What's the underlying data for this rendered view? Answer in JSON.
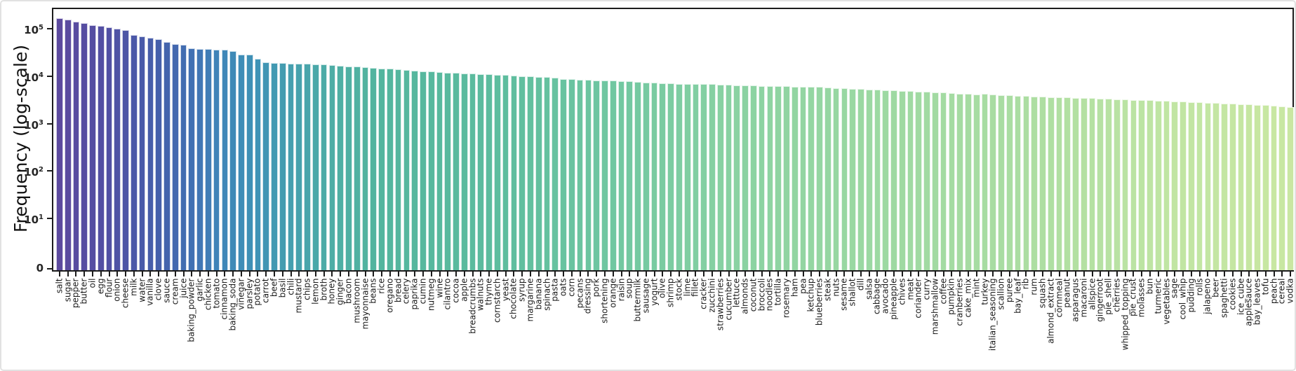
{
  "figure": {
    "background": "#ffffff",
    "border_color": "#e2e2e2",
    "axis_color": "#1c1c1c",
    "tick_label_color": "#262626",
    "bar_edge_color": "rgba(255,255,255,0.75)"
  },
  "chart_data": {
    "type": "bar",
    "title": "",
    "xlabel": "",
    "ylabel": "Frequency (log-scale)",
    "yscale": "symlog",
    "ylim": [
      0,
      277000
    ],
    "grid": false,
    "legend_position": "none",
    "yticks": [
      {
        "label": "0",
        "value": 0
      },
      {
        "base": "10",
        "exp": "1",
        "value": 10
      },
      {
        "base": "10",
        "exp": "2",
        "value": 100
      },
      {
        "base": "10",
        "exp": "3",
        "value": 1000
      },
      {
        "base": "10",
        "exp": "4",
        "value": 10000
      },
      {
        "base": "10",
        "exp": "5",
        "value": 100000
      }
    ],
    "categories": [
      "salt",
      "sugar",
      "pepper",
      "butter",
      "oil",
      "egg",
      "flour",
      "onion",
      "cheese",
      "milk",
      "water",
      "vanilla",
      "clove",
      "sauce",
      "cream",
      "juice",
      "baking_powder",
      "garlic",
      "chicken",
      "tomato",
      "cinnamon",
      "baking_soda",
      "vinegar",
      "parsley",
      "potato",
      "carrot",
      "beef",
      "basil",
      "chili",
      "mustard",
      "chips",
      "lemon",
      "broth",
      "honey",
      "ginger",
      "bacon",
      "mushroom",
      "mayonnaise",
      "beans",
      "rice",
      "oregano",
      "bread",
      "celery",
      "paprika",
      "cumin",
      "nutmeg",
      "wine",
      "cilantro",
      "cocoa",
      "apple",
      "breadcrumbs",
      "walnuts",
      "thyme",
      "cornstarch",
      "yeast",
      "chocolate",
      "syrup",
      "margarine",
      "banana",
      "spinach",
      "pasta",
      "oats",
      "corn",
      "pecans",
      "dressing",
      "pork",
      "shortening",
      "orange",
      "raisin",
      "soup",
      "buttermilk",
      "sausage",
      "yogurt",
      "olive",
      "shrimp",
      "stock",
      "lime",
      "fillet",
      "cracker",
      "zucchini",
      "strawberries",
      "cucumber",
      "lettuce",
      "almonds",
      "coconut",
      "broccoli",
      "noodles",
      "tortilla",
      "rosemary",
      "ham",
      "pea",
      "ketchup",
      "blueberries",
      "steak",
      "nuts",
      "sesame",
      "shallot",
      "dill",
      "salsa",
      "cabbage",
      "avocado",
      "pineapple",
      "chives",
      "meat",
      "coriander",
      "curry",
      "marshmallow",
      "coffee",
      "pumpkin",
      "cranberries",
      "cake_mix",
      "mint",
      "turkey",
      "italian_seasoning",
      "scallion",
      "puree",
      "bay_leaf",
      "rib",
      "rum",
      "squash",
      "almond_extract",
      "cornmeal",
      "peanut",
      "asparagus",
      "macaroni",
      "allspice",
      "gingerroot",
      "pie_shell",
      "cherries",
      "whipped_topping",
      "pie_crust",
      "molasses",
      "bun",
      "turmeric",
      "vegetables",
      "sage",
      "cool_whip",
      "pudding",
      "rolls",
      "jalapeno",
      "beer",
      "spaghetti",
      "cookies",
      "ice_cube",
      "applesauce",
      "bay_leaves",
      "tofu",
      "peach",
      "cereal",
      "vodka"
    ],
    "values": [
      180000,
      165000,
      150000,
      140000,
      127000,
      123000,
      116000,
      109000,
      99000,
      78000,
      74000,
      68000,
      64000,
      56000,
      50000,
      49000,
      42000,
      40000,
      39600,
      39200,
      38800,
      36500,
      30800,
      30200,
      24600,
      21000,
      20400,
      20100,
      19900,
      19700,
      19400,
      19000,
      18700,
      18400,
      17700,
      17400,
      16900,
      16600,
      16000,
      15500,
      15200,
      14900,
      14400,
      14000,
      13700,
      13400,
      13100,
      12800,
      12500,
      12300,
      12000,
      11900,
      11600,
      11400,
      11200,
      11000,
      10800,
      10600,
      10400,
      10200,
      10000,
      9400,
      9200,
      9000,
      8900,
      8800,
      8700,
      8600,
      8500,
      8300,
      8100,
      7900,
      7700,
      7600,
      7500,
      7400,
      7300,
      7350,
      7250,
      7200,
      7100,
      7000,
      6900,
      6850,
      6800,
      6700,
      6650,
      6600,
      6500,
      6400,
      6300,
      6450,
      6350,
      6100,
      6000,
      5900,
      5800,
      5700,
      5600,
      5500,
      5400,
      5300,
      5250,
      5200,
      5100,
      5000,
      4900,
      4800,
      4700,
      4600,
      4500,
      4400,
      4500,
      4450,
      4300,
      4200,
      4150,
      4100,
      4000,
      3950,
      3900,
      3850,
      3800,
      3750,
      3700,
      3650,
      3600,
      3550,
      3500,
      3450,
      3400,
      3350,
      3300,
      3250,
      3200,
      3150,
      3100,
      3050,
      3000,
      2950,
      2900,
      2850,
      2800,
      2750,
      2700,
      2650,
      2600,
      2550,
      2500,
      2400
    ],
    "palette_stops": [
      {
        "t": 0.0,
        "color": "#5c4a9e"
      },
      {
        "t": 0.04,
        "color": "#5150a4"
      },
      {
        "t": 0.08,
        "color": "#455fab"
      },
      {
        "t": 0.11,
        "color": "#4173b4"
      },
      {
        "t": 0.13,
        "color": "#3f85b8"
      },
      {
        "t": 0.16,
        "color": "#3f92b6"
      },
      {
        "t": 0.19,
        "color": "#46a0ae"
      },
      {
        "t": 0.22,
        "color": "#4dada6"
      },
      {
        "t": 0.26,
        "color": "#53b59e"
      },
      {
        "t": 0.35,
        "color": "#5cbc9e"
      },
      {
        "t": 0.45,
        "color": "#70c7a1"
      },
      {
        "t": 0.55,
        "color": "#8ad2a2"
      },
      {
        "t": 0.65,
        "color": "#9ad8a2"
      },
      {
        "t": 0.78,
        "color": "#abdda2"
      },
      {
        "t": 0.9,
        "color": "#c0e5a3"
      },
      {
        "t": 1.0,
        "color": "#c9e7a2"
      }
    ]
  }
}
